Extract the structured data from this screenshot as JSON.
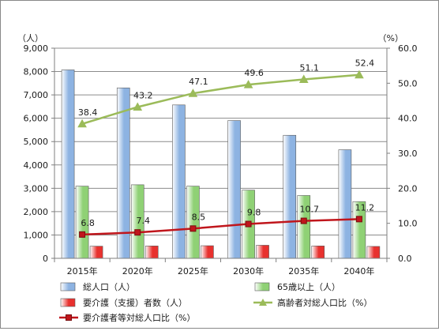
{
  "chart_data": {
    "type": "bar",
    "categories": [
      "2015年",
      "2020年",
      "2025年",
      "2030年",
      "2035年",
      "2040年"
    ],
    "left_axis": {
      "unit": "（人）",
      "ylim": [
        0,
        9000
      ],
      "ticks": [
        "0",
        "1,000",
        "2,000",
        "3,000",
        "4,000",
        "5,000",
        "6,000",
        "7,000",
        "8,000",
        "9,000"
      ]
    },
    "right_axis": {
      "unit": "（%）",
      "ylim": [
        0,
        60
      ],
      "ticks": [
        "0.0",
        "10.0",
        "20.0",
        "30.0",
        "40.0",
        "50.0",
        "60.0"
      ]
    },
    "grid": true,
    "legend_position": "bottom",
    "series": [
      {
        "name": "総人口（人）",
        "kind": "bar",
        "axis": "left",
        "color": "#8db3e2",
        "values": [
          8070,
          7300,
          6570,
          5900,
          5270,
          4650
        ]
      },
      {
        "name": "65歳以上（人）",
        "kind": "bar",
        "axis": "left",
        "color": "#8fd175",
        "values": [
          3090,
          3150,
          3090,
          2920,
          2690,
          2430
        ]
      },
      {
        "name": "要介護（支援）者数（人）",
        "kind": "bar",
        "axis": "left",
        "color": "#e8312e",
        "values": [
          520,
          530,
          540,
          560,
          530,
          510
        ]
      },
      {
        "name": "高齢者対総人口比（%）",
        "kind": "line",
        "axis": "right",
        "color": "#9bbb59",
        "marker": "triangle",
        "values": [
          38.4,
          43.2,
          47.1,
          49.6,
          51.1,
          52.4
        ],
        "labels": [
          "38.4",
          "43.2",
          "47.1",
          "49.6",
          "51.1",
          "52.4"
        ]
      },
      {
        "name": "要介護者等対総人口比（%）",
        "kind": "line",
        "axis": "right",
        "color": "#c0161c",
        "marker": "square",
        "values": [
          6.8,
          7.4,
          8.5,
          9.8,
          10.7,
          11.2
        ],
        "labels": [
          "6.8",
          "7.4",
          "8.5",
          "9.8",
          "10.7",
          "11.2"
        ]
      }
    ]
  }
}
